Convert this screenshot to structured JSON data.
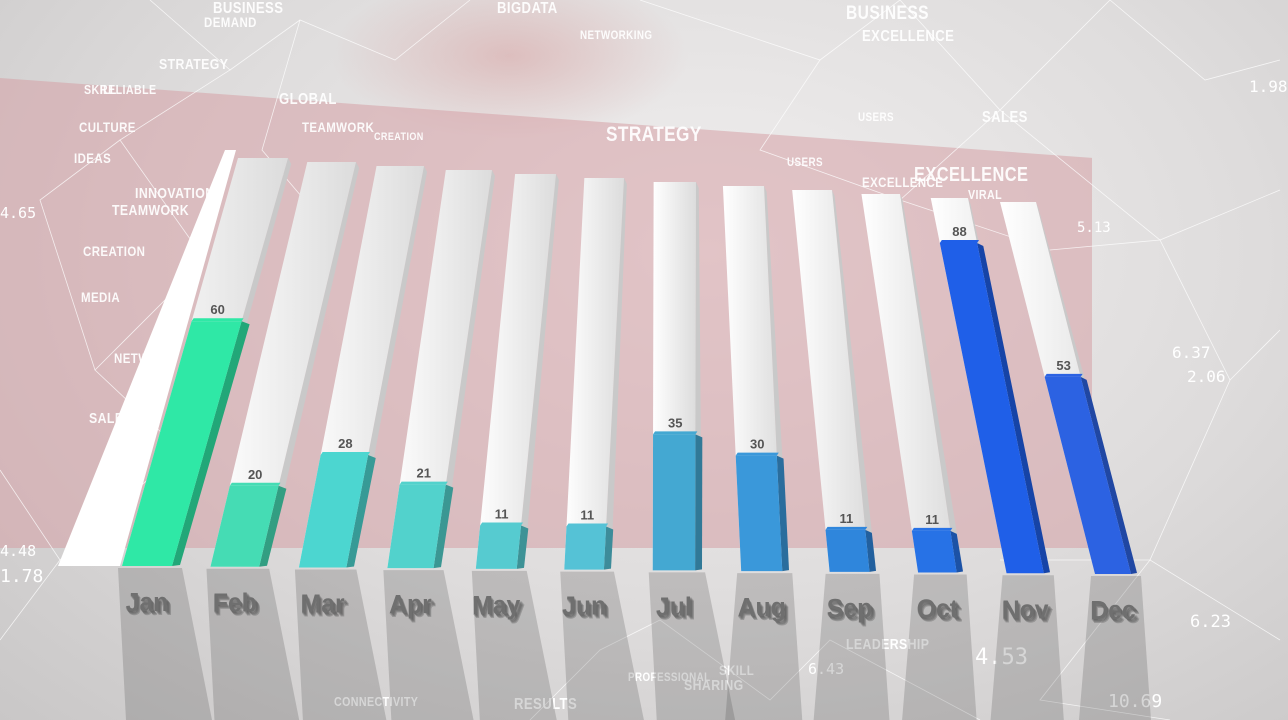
{
  "chart_data": {
    "type": "bar",
    "title": "",
    "xlabel": "",
    "ylabel": "",
    "ylim": [
      0,
      100
    ],
    "categories": [
      "Jan",
      "Feb",
      "Mar",
      "Apr",
      "May",
      "Jun",
      "Jul",
      "Aug",
      "Sep",
      "Oct",
      "Nov",
      "Dec"
    ],
    "values": [
      60,
      20,
      28,
      21,
      11,
      11,
      35,
      30,
      11,
      11,
      88,
      53
    ],
    "value_labels": [
      "60",
      "20",
      "28",
      "21",
      "11",
      "11",
      "35",
      "30",
      "11",
      "11",
      "88",
      "53"
    ],
    "bar_colors": [
      "#2fe8a6",
      "#45dcb4",
      "#4cd6d0",
      "#52d2cc",
      "#56cbd0",
      "#55c2d6",
      "#44a8d2",
      "#3a98da",
      "#2f86dc",
      "#2772e6",
      "#1f5fe8",
      "#2c62e2"
    ],
    "grid": false,
    "legend": "none"
  },
  "background_words": [
    "DEMAND",
    "BUSINESS",
    "BIGDATA",
    "NETWORKING",
    "BUSINESS",
    "EXCELLENCE",
    "STRATEGY",
    "SKILL",
    "RELIABLE",
    "GLOBAL",
    "CULTURE",
    "TEAMWORK",
    "CREATION",
    "STRATEGY",
    "USERS",
    "SALES",
    "IDEAS",
    "USERS",
    "EXCELLENCE",
    "EXCELLENCE",
    "INNOVATION",
    "TEAMWORK",
    "VIRAL",
    "CREATION",
    "MEDIA",
    "NETWORK",
    "SALES",
    "LEADERSHIP",
    "PROFESSIONAL",
    "SKILL",
    "SHARING",
    "CONNECTIVITY",
    "RESULTS"
  ],
  "background_numbers": [
    "1.98",
    "4.65",
    "5.13",
    "6.37",
    "2.06",
    "4.48",
    "1.78",
    "6.23",
    "4.53",
    "6.43",
    "10.69"
  ],
  "colors": {
    "background": "#e3e1e1",
    "panel": "#d6a0a5",
    "bar_track": "#e4e3e3",
    "month_text": "#6f6f6f"
  }
}
